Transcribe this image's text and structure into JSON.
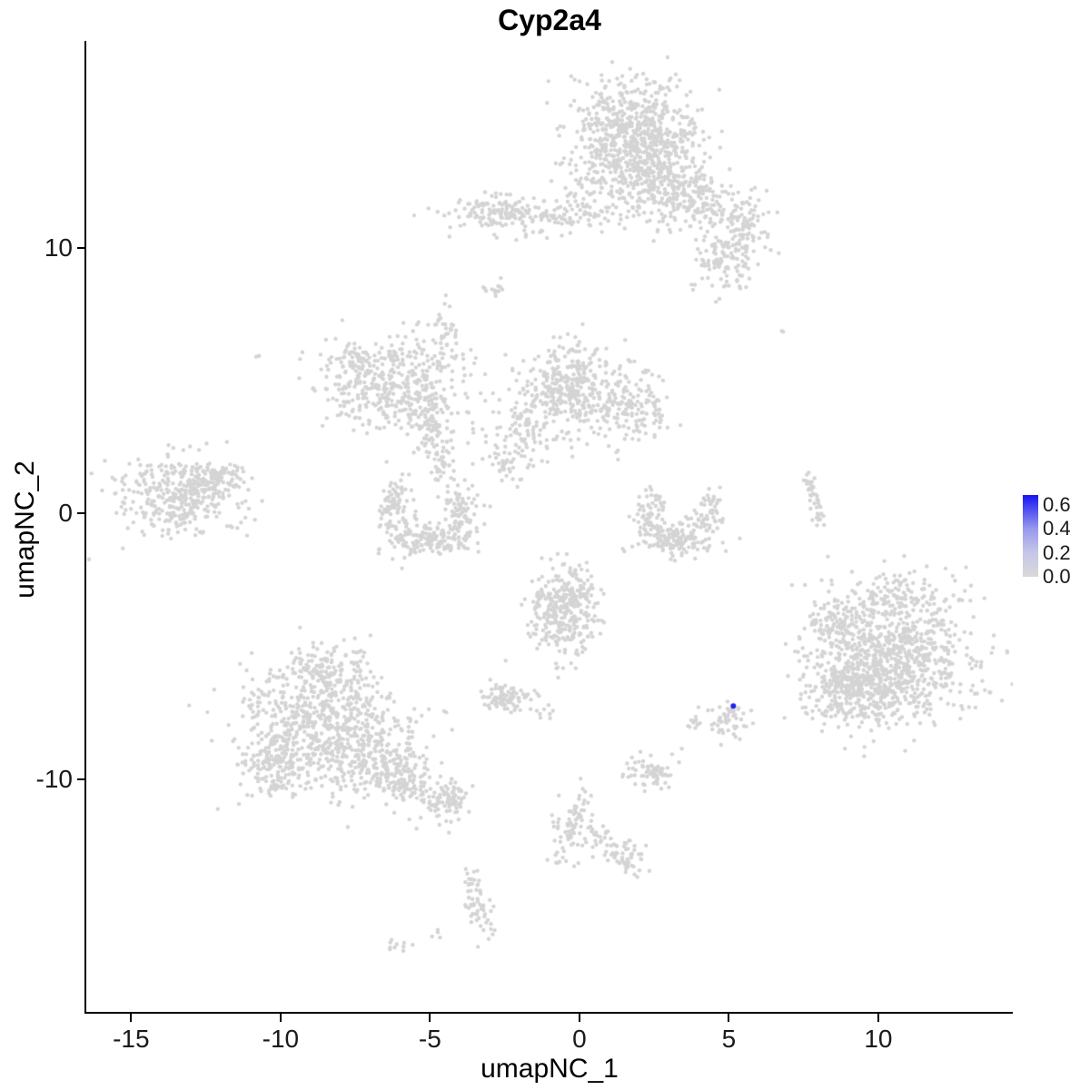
{
  "figure": {
    "title": "Cyp2a4"
  },
  "chart_data": {
    "type": "scatter",
    "title": "Cyp2a4",
    "xlabel": "umapNC_1",
    "ylabel": "umapNC_2",
    "xlim": [
      -16.5,
      14.5
    ],
    "ylim": [
      -18.8,
      17.8
    ],
    "xticks": [
      -15,
      -10,
      -5,
      0,
      5,
      10
    ],
    "yticks": [
      -10,
      0,
      10
    ],
    "grid": false,
    "background": "#ffffff",
    "point_color": "#d4d4d4",
    "point_radius": 2.2,
    "legend": {
      "position": "right",
      "ticks": [
        0.6,
        0.4,
        0.2,
        0.0
      ],
      "vmax": 0.68,
      "low_color": "#d9d9d9",
      "high_color": "#1414f2",
      "stops": [
        {
          "v": 0.0,
          "c": "#d9d9d9"
        },
        {
          "v": 0.2,
          "c": "#c6c6e9"
        },
        {
          "v": 0.4,
          "c": "#9898ee"
        },
        {
          "v": 0.6,
          "c": "#3c3cf0"
        },
        {
          "v": 0.68,
          "c": "#1414f2"
        }
      ]
    },
    "highlight_points": [
      {
        "x": 5.15,
        "y": -7.25,
        "value": 0.65,
        "color": "#2121ee",
        "radius": 3
      }
    ],
    "clusters": [
      {
        "x": 1.7,
        "y": 14.3,
        "sx": 1.1,
        "sy": 1.0,
        "n": 650
      },
      {
        "x": 2.6,
        "y": 12.7,
        "sx": 0.8,
        "sy": 0.7,
        "n": 220
      },
      {
        "x": 3.9,
        "y": 11.7,
        "sx": 0.9,
        "sy": 0.6,
        "n": 180
      },
      {
        "x": 4.9,
        "y": 9.7,
        "sx": 0.6,
        "sy": 0.7,
        "n": 140
      },
      {
        "x": -1.4,
        "y": 11.2,
        "sx": 1.5,
        "sy": 0.35,
        "n": 170
      },
      {
        "x": -2.9,
        "y": 11.5,
        "sx": 0.5,
        "sy": 0.3,
        "n": 60
      },
      {
        "x": 0.3,
        "y": 12.1,
        "sx": 0.45,
        "sy": 0.5,
        "n": 45
      },
      {
        "x": 5.6,
        "y": 11.0,
        "sx": 0.4,
        "sy": 0.5,
        "n": 50
      },
      {
        "x": -2.8,
        "y": 8.5,
        "sx": 0.15,
        "sy": 0.25,
        "n": 10
      },
      {
        "x": -6.3,
        "y": 4.9,
        "sx": 1.2,
        "sy": 0.8,
        "n": 420
      },
      {
        "x": -4.5,
        "y": 6.6,
        "sx": 0.25,
        "sy": 0.6,
        "n": 45
      },
      {
        "x": -5.1,
        "y": 3.5,
        "sx": 0.35,
        "sy": 0.6,
        "n": 90
      },
      {
        "x": -4.6,
        "y": 2.0,
        "sx": 0.2,
        "sy": 0.7,
        "n": 45
      },
      {
        "x": -7.7,
        "y": 5.8,
        "sx": 0.3,
        "sy": 0.3,
        "n": 30
      },
      {
        "x": -0.4,
        "y": 4.7,
        "sx": 0.9,
        "sy": 0.8,
        "n": 380
      },
      {
        "x": 1.8,
        "y": 3.9,
        "sx": 0.6,
        "sy": 0.7,
        "n": 140
      },
      {
        "x": -1.9,
        "y": 3.0,
        "sx": 0.7,
        "sy": 0.4,
        "n": 70,
        "rot": -30
      },
      {
        "x": -2.4,
        "y": 1.9,
        "sx": 0.5,
        "sy": 0.25,
        "n": 40,
        "rot": -35
      },
      {
        "x": -13.4,
        "y": 0.7,
        "sx": 1.0,
        "sy": 0.75,
        "n": 380
      },
      {
        "x": -12.0,
        "y": 1.4,
        "sx": 0.4,
        "sy": 0.3,
        "n": 60
      },
      {
        "x": -10.7,
        "y": 6.0,
        "sx": 0.08,
        "sy": 0.08,
        "n": 2
      },
      {
        "x": -6.1,
        "y": 0.1,
        "sx": 0.35,
        "sy": 0.6,
        "n": 90
      },
      {
        "x": -5.1,
        "y": -0.9,
        "sx": 0.7,
        "sy": 0.35,
        "n": 160
      },
      {
        "x": -4.0,
        "y": 0.2,
        "sx": 0.3,
        "sy": 0.5,
        "n": 80
      },
      {
        "x": 2.4,
        "y": 0.0,
        "sx": 0.3,
        "sy": 0.5,
        "n": 70
      },
      {
        "x": 3.3,
        "y": -1.0,
        "sx": 0.6,
        "sy": 0.3,
        "n": 130
      },
      {
        "x": 4.3,
        "y": -0.1,
        "sx": 0.25,
        "sy": 0.45,
        "n": 60
      },
      {
        "x": 7.9,
        "y": 0.4,
        "sx": 0.12,
        "sy": 0.8,
        "n": 40,
        "rot": 15
      },
      {
        "x": -0.6,
        "y": -3.8,
        "sx": 0.6,
        "sy": 0.8,
        "n": 280
      },
      {
        "x": -0.1,
        "y": -2.7,
        "sx": 0.3,
        "sy": 0.4,
        "n": 60
      },
      {
        "x": -2.4,
        "y": -7.0,
        "sx": 0.4,
        "sy": 0.3,
        "n": 80
      },
      {
        "x": -1.1,
        "y": -7.4,
        "sx": 0.15,
        "sy": 0.15,
        "n": 8
      },
      {
        "x": 10.4,
        "y": -5.5,
        "sx": 1.4,
        "sy": 1.2,
        "n": 850
      },
      {
        "x": 9.3,
        "y": -6.8,
        "sx": 0.8,
        "sy": 0.6,
        "n": 250
      },
      {
        "x": 10.8,
        "y": -3.2,
        "sx": 1.0,
        "sy": 0.6,
        "n": 150
      },
      {
        "x": 8.4,
        "y": -4.2,
        "sx": 0.4,
        "sy": 0.5,
        "n": 60
      },
      {
        "x": -8.6,
        "y": -8.0,
        "sx": 1.3,
        "sy": 1.2,
        "n": 750
      },
      {
        "x": -6.2,
        "y": -9.8,
        "sx": 0.9,
        "sy": 0.5,
        "n": 220,
        "rot": -25
      },
      {
        "x": -4.5,
        "y": -10.8,
        "sx": 0.5,
        "sy": 0.4,
        "n": 90
      },
      {
        "x": -8.5,
        "y": -5.9,
        "sx": 0.8,
        "sy": 0.5,
        "n": 100
      },
      {
        "x": -10.3,
        "y": -9.4,
        "sx": 0.5,
        "sy": 0.6,
        "n": 120
      },
      {
        "x": 4.9,
        "y": -7.8,
        "sx": 0.35,
        "sy": 0.4,
        "n": 55
      },
      {
        "x": 3.9,
        "y": -7.9,
        "sx": 0.15,
        "sy": 0.15,
        "n": 10
      },
      {
        "x": 2.4,
        "y": -9.7,
        "sx": 0.5,
        "sy": 0.3,
        "n": 70
      },
      {
        "x": -0.2,
        "y": -11.5,
        "sx": 0.25,
        "sy": 0.8,
        "n": 80,
        "rot": -20
      },
      {
        "x": 1.5,
        "y": -12.9,
        "sx": 0.3,
        "sy": 0.5,
        "n": 55,
        "rot": 20
      },
      {
        "x": 0.6,
        "y": -12.2,
        "sx": 0.2,
        "sy": 0.3,
        "n": 25
      },
      {
        "x": -3.4,
        "y": -14.6,
        "sx": 0.22,
        "sy": 0.75,
        "n": 60,
        "rot": 10
      },
      {
        "x": -6.1,
        "y": -16.3,
        "sx": 0.25,
        "sy": 0.15,
        "n": 10
      },
      {
        "x": -4.8,
        "y": -15.9,
        "sx": 0.1,
        "sy": 0.1,
        "n": 4
      },
      {
        "x": 6.8,
        "y": 6.9,
        "sx": 0.05,
        "sy": 0.05,
        "n": 2
      },
      {
        "x": -3.2,
        "y": 8.4,
        "sx": 0.1,
        "sy": 0.1,
        "n": 3
      }
    ]
  }
}
